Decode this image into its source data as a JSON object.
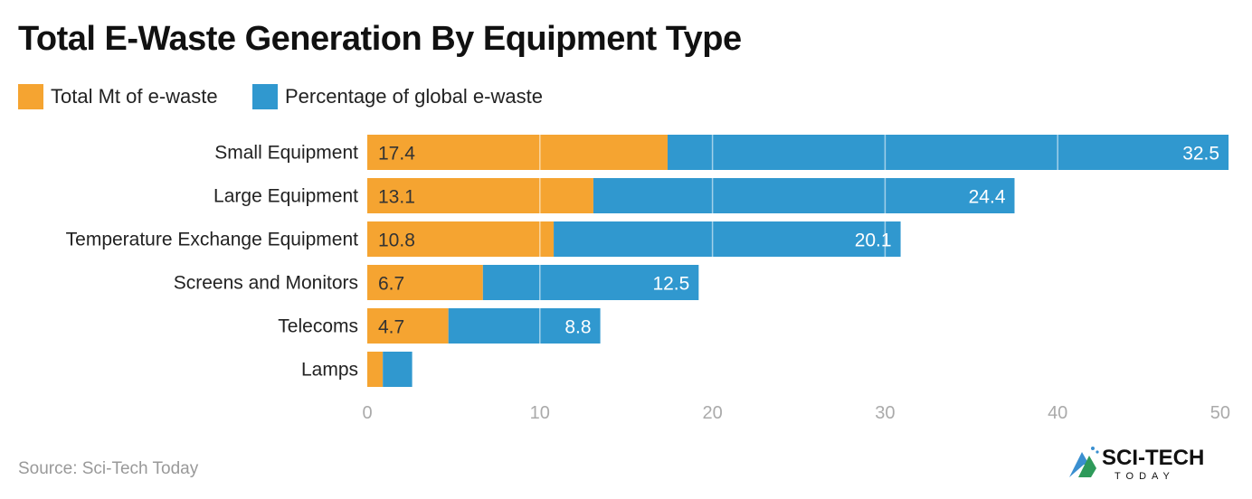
{
  "chart_data": {
    "type": "bar",
    "orientation": "horizontal",
    "stacked": true,
    "title": "Total E-Waste Generation By Equipment Type",
    "categories": [
      "Small Equipment",
      "Large Equipment",
      "Temperature Exchange Equipment",
      "Screens and Monitors",
      "Telecoms",
      "Lamps"
    ],
    "series": [
      {
        "name": "Total Mt of e-waste",
        "color": "#f5a431",
        "values": [
          17.4,
          13.1,
          10.8,
          6.7,
          4.7,
          0.9
        ],
        "labels": [
          "17.4",
          "13.1",
          "10.8",
          "6.7",
          "4.7",
          ""
        ]
      },
      {
        "name": "Percentage of global e-waste",
        "color": "#3098cf",
        "values": [
          32.5,
          24.4,
          20.1,
          12.5,
          8.8,
          1.7
        ],
        "labels": [
          "32.5",
          "24.4",
          "20.1",
          "12.5",
          "8.8",
          ""
        ]
      }
    ],
    "xlim": [
      0,
      50
    ],
    "xticks": [
      "0",
      "10",
      "20",
      "30",
      "40",
      "50"
    ],
    "grid": true,
    "legend_position": "top-left"
  },
  "source": "Source: Sci-Tech Today",
  "logo": {
    "text": "SCI-TECH",
    "subtext": "TODAY"
  }
}
